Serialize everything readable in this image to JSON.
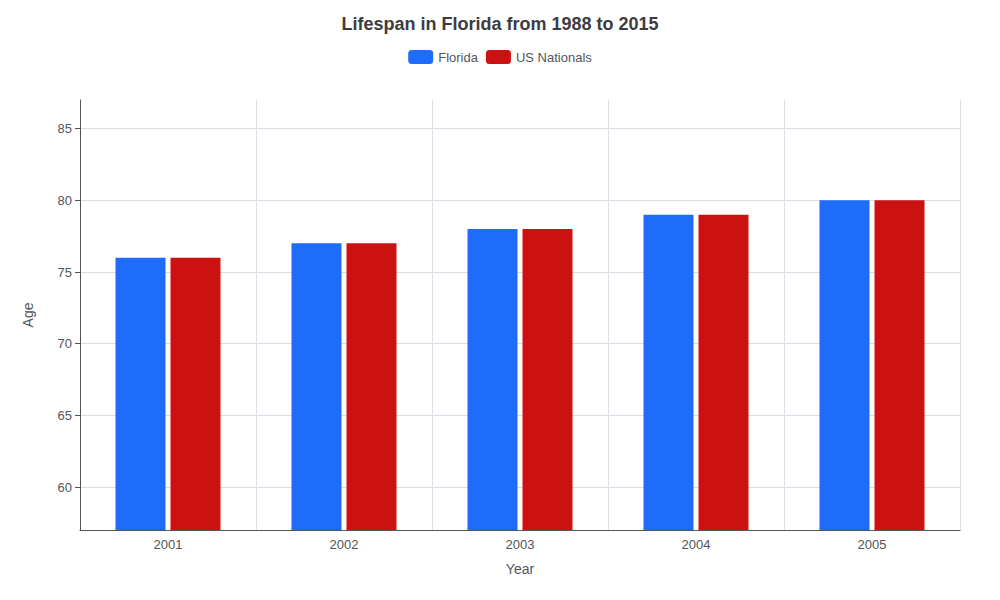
{
  "chart_data": {
    "type": "bar",
    "title": "Lifespan in Florida from 1988 to 2015",
    "xlabel": "Year",
    "ylabel": "Age",
    "categories": [
      "2001",
      "2002",
      "2003",
      "2004",
      "2005"
    ],
    "series": [
      {
        "name": "Florida",
        "color": "#1f6bfa",
        "values": [
          76,
          77,
          78,
          79,
          80
        ]
      },
      {
        "name": "US Nationals",
        "color": "#cc1111",
        "values": [
          76,
          77,
          78,
          79,
          80
        ]
      }
    ],
    "ylim": [
      57,
      87
    ],
    "yticks": [
      60,
      65,
      70,
      75,
      80,
      85
    ],
    "grid": true,
    "legend": "top"
  }
}
